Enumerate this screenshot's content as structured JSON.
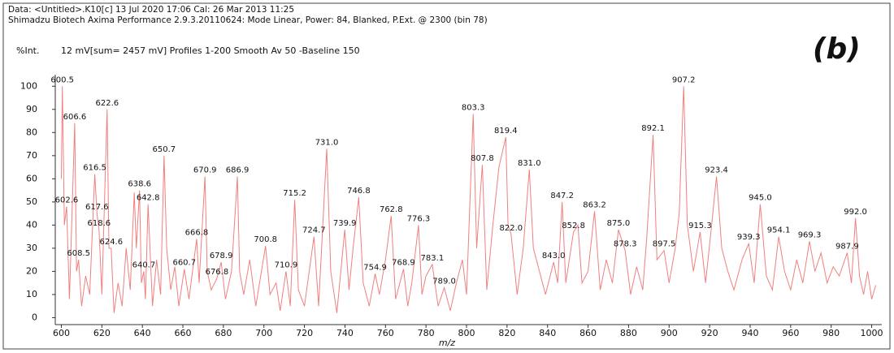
{
  "chart_data": {
    "type": "line",
    "header_lines": [
      "Data: <Untitled>.K10[c] 13 Jul 2020 17:06 Cal: 26 Mar 2013 11:25",
      "Shimadzu Biotech Axima Performance 2.9.3.20110624: Mode Linear, Power: 84, Blanked, P.Ext. @ 2300 (bin 78)"
    ],
    "ylabel": "%Int.",
    "subtitle": "12 mV[sum= 2457 mV]  Profiles 1-200 Smooth Av 50 -Baseline 150",
    "panel_label": "(b)",
    "xlabel": "m/z",
    "xlim": [
      597,
      1005
    ],
    "ylim": [
      -3,
      105
    ],
    "xticks": [
      600,
      620,
      640,
      660,
      680,
      700,
      720,
      740,
      760,
      780,
      800,
      820,
      840,
      860,
      880,
      900,
      920,
      940,
      960,
      980,
      1000
    ],
    "yticks": [
      0,
      10,
      20,
      30,
      40,
      50,
      60,
      70,
      80,
      90,
      100
    ],
    "series": [
      {
        "color": "#f08080",
        "x": [
          600,
          600.5,
          601.5,
          602.6,
          604,
          606.6,
          607.5,
          608.5,
          610,
          612,
          614,
          616.5,
          617.6,
          618.6,
          620,
          622.6,
          623.5,
          624.6,
          626,
          628,
          630,
          632,
          634,
          636,
          637,
          638.6,
          639.5,
          640.7,
          641.5,
          642.8,
          645,
          647,
          649,
          650.7,
          652,
          654,
          656,
          658,
          660.7,
          663,
          666.8,
          668,
          670.9,
          672,
          674,
          676.8,
          678.9,
          681,
          684,
          686.9,
          688,
          690,
          693,
          696,
          700.8,
          703,
          706,
          708,
          710.9,
          713,
          715.2,
          717,
          720,
          724.7,
          727,
          731,
          733,
          736,
          739.9,
          742,
          744,
          746.8,
          749,
          752,
          754.9,
          757,
          760,
          762.8,
          765,
          768.9,
          771,
          773,
          776.3,
          778,
          780,
          783.1,
          786,
          789,
          792,
          795,
          798,
          800,
          803.3,
          805,
          807.8,
          810,
          813,
          816,
          819.4,
          820.5,
          822,
          825,
          828,
          831,
          833,
          836,
          839,
          843,
          845,
          847.2,
          849,
          852.8,
          855,
          857,
          860,
          863.2,
          866,
          869,
          872,
          875,
          878.3,
          881,
          884,
          887,
          889,
          892.1,
          894,
          897.5,
          900,
          903,
          905,
          907.2,
          909,
          912,
          915.3,
          918,
          921,
          923.4,
          926,
          929,
          932,
          936,
          939.3,
          942,
          945,
          948,
          951,
          954.1,
          957,
          960,
          963,
          966,
          969.3,
          972,
          975,
          978,
          981,
          984,
          987.9,
          990,
          992,
          994,
          996,
          998,
          1000,
          1002
        ],
        "values": [
          60,
          100,
          40,
          48,
          8,
          84,
          20,
          25,
          5,
          18,
          10,
          62,
          45,
          38,
          10,
          90,
          30,
          30,
          2,
          15,
          5,
          30,
          12,
          54,
          30,
          55,
          15,
          20,
          8,
          49,
          5,
          25,
          10,
          70,
          30,
          12,
          22,
          5,
          21,
          8,
          34,
          15,
          61,
          20,
          12,
          17,
          24,
          8,
          20,
          61,
          20,
          10,
          25,
          5,
          31,
          10,
          15,
          3,
          20,
          5,
          51,
          12,
          5,
          35,
          5,
          73,
          20,
          2,
          38,
          12,
          30,
          52,
          15,
          5,
          19,
          10,
          25,
          44,
          8,
          21,
          5,
          15,
          40,
          10,
          18,
          23,
          5,
          13,
          3,
          15,
          25,
          10,
          88,
          30,
          66,
          12,
          40,
          65,
          78,
          40,
          36,
          10,
          30,
          64,
          30,
          20,
          10,
          24,
          15,
          50,
          15,
          37,
          40,
          15,
          20,
          46,
          12,
          25,
          15,
          38,
          29,
          10,
          22,
          12,
          35,
          79,
          25,
          29,
          15,
          30,
          45,
          100,
          40,
          20,
          37,
          15,
          40,
          61,
          30,
          20,
          12,
          25,
          32,
          15,
          49,
          18,
          12,
          35,
          20,
          12,
          25,
          15,
          33,
          20,
          28,
          15,
          22,
          18,
          28,
          15,
          43,
          18,
          10,
          20,
          8,
          14
        ]
      }
    ],
    "peak_labels": [
      {
        "label": "600.5",
        "x": 600.5,
        "y": 100
      },
      {
        "label": "602.6",
        "x": 602.6,
        "y": 48
      },
      {
        "label": "606.6",
        "x": 606.6,
        "y": 84
      },
      {
        "label": "608.5",
        "x": 608.5,
        "y": 25
      },
      {
        "label": "616.5",
        "x": 616.5,
        "y": 62
      },
      {
        "label": "617.6",
        "x": 617.6,
        "y": 45
      },
      {
        "label": "618.6",
        "x": 618.6,
        "y": 38
      },
      {
        "label": "622.6",
        "x": 622.6,
        "y": 90
      },
      {
        "label": "624.6",
        "x": 624.6,
        "y": 30
      },
      {
        "label": "638.6",
        "x": 638.6,
        "y": 55
      },
      {
        "label": "640.7",
        "x": 640.7,
        "y": 20
      },
      {
        "label": "642.8",
        "x": 642.8,
        "y": 49
      },
      {
        "label": "650.7",
        "x": 650.7,
        "y": 70
      },
      {
        "label": "660.7",
        "x": 660.7,
        "y": 21
      },
      {
        "label": "666.8",
        "x": 666.8,
        "y": 34
      },
      {
        "label": "670.9",
        "x": 670.9,
        "y": 61
      },
      {
        "label": "676.8",
        "x": 676.8,
        "y": 17
      },
      {
        "label": "678.9",
        "x": 678.9,
        "y": 24
      },
      {
        "label": "686.9",
        "x": 686.9,
        "y": 61
      },
      {
        "label": "700.8",
        "x": 700.8,
        "y": 31
      },
      {
        "label": "710.9",
        "x": 710.9,
        "y": 20
      },
      {
        "label": "715.2",
        "x": 715.2,
        "y": 51
      },
      {
        "label": "724.7",
        "x": 724.7,
        "y": 35
      },
      {
        "label": "731.0",
        "x": 731,
        "y": 73
      },
      {
        "label": "739.9",
        "x": 739.9,
        "y": 38
      },
      {
        "label": "746.8",
        "x": 746.8,
        "y": 52
      },
      {
        "label": "754.9",
        "x": 754.9,
        "y": 19
      },
      {
        "label": "762.8",
        "x": 762.8,
        "y": 44
      },
      {
        "label": "768.9",
        "x": 768.9,
        "y": 21
      },
      {
        "label": "776.3",
        "x": 776.3,
        "y": 40
      },
      {
        "label": "783.1",
        "x": 783.1,
        "y": 23
      },
      {
        "label": "789.0",
        "x": 789,
        "y": 13
      },
      {
        "label": "803.3",
        "x": 803.3,
        "y": 88
      },
      {
        "label": "807.8",
        "x": 807.8,
        "y": 66
      },
      {
        "label": "819.4",
        "x": 819.4,
        "y": 78
      },
      {
        "label": "822.0",
        "x": 822,
        "y": 36
      },
      {
        "label": "831.0",
        "x": 831,
        "y": 64
      },
      {
        "label": "843.0",
        "x": 843,
        "y": 24
      },
      {
        "label": "847.2",
        "x": 847.2,
        "y": 50
      },
      {
        "label": "852.8",
        "x": 852.8,
        "y": 37
      },
      {
        "label": "863.2",
        "x": 863.2,
        "y": 46
      },
      {
        "label": "875.0",
        "x": 875,
        "y": 38
      },
      {
        "label": "878.3",
        "x": 878.3,
        "y": 29
      },
      {
        "label": "892.1",
        "x": 892.1,
        "y": 79
      },
      {
        "label": "897.5",
        "x": 897.5,
        "y": 29
      },
      {
        "label": "907.2",
        "x": 907.2,
        "y": 100
      },
      {
        "label": "915.3",
        "x": 915.3,
        "y": 37
      },
      {
        "label": "923.4",
        "x": 923.4,
        "y": 61
      },
      {
        "label": "939.3",
        "x": 939.3,
        "y": 32
      },
      {
        "label": "945.0",
        "x": 945,
        "y": 49
      },
      {
        "label": "954.1",
        "x": 954.1,
        "y": 35
      },
      {
        "label": "969.3",
        "x": 969.3,
        "y": 33
      },
      {
        "label": "987.9",
        "x": 987.9,
        "y": 28
      },
      {
        "label": "992.0",
        "x": 992,
        "y": 43
      }
    ]
  }
}
